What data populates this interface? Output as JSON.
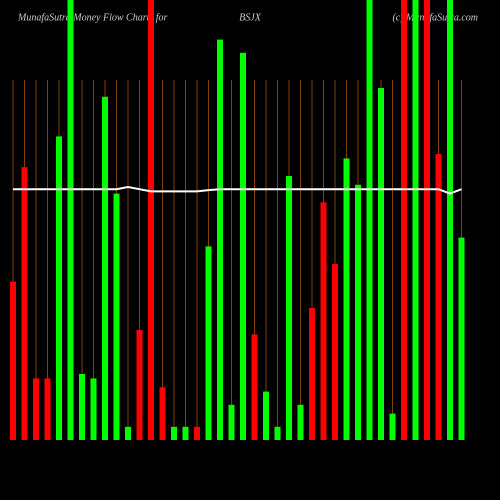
{
  "chart_data": {
    "type": "bar",
    "title": "MunafaSutra Money Flow Charts for",
    "symbol": "BSJX",
    "credit": "(c) MunafaSutra.com",
    "categories": [
      null,
      null,
      null,
      null,
      null,
      null,
      null,
      null,
      null,
      null,
      null,
      null,
      null,
      null,
      null,
      null,
      null,
      null,
      null,
      null,
      null,
      null,
      null,
      null,
      null,
      null,
      null,
      null,
      null,
      null,
      null,
      null,
      null,
      null,
      null,
      null,
      null,
      null,
      null,
      null
    ],
    "values": [
      36,
      62,
      14,
      14,
      69,
      100,
      15,
      14,
      78,
      56,
      3,
      25,
      100,
      12,
      3,
      3,
      3,
      44,
      91,
      8,
      88,
      24,
      11,
      3,
      60,
      8,
      30,
      54,
      40,
      64,
      58,
      100,
      80,
      6,
      100,
      100,
      100,
      65,
      100,
      46
    ],
    "colors": [
      "#ff0000",
      "#ff0000",
      "#ff0000",
      "#ff0000",
      "#00ff00",
      "#00ff00",
      "#00ff00",
      "#00ff00",
      "#00ff00",
      "#00ff00",
      "#00ff00",
      "#ff0000",
      "#ff0000",
      "#ff0000",
      "#00ff00",
      "#00ff00",
      "#ff0000",
      "#00ff00",
      "#00ff00",
      "#00ff00",
      "#00ff00",
      "#ff0000",
      "#00ff00",
      "#00ff00",
      "#00ff00",
      "#00ff00",
      "#ff0000",
      "#ff0000",
      "#ff0000",
      "#00ff00",
      "#00ff00",
      "#00ff00",
      "#00ff00",
      "#00ff00",
      "#ff0000",
      "#00ff00",
      "#ff0000",
      "#ff0000",
      "#00ff00",
      "#00ff00"
    ],
    "line_values": [
      57,
      57,
      57,
      57,
      57,
      57,
      57,
      57,
      57,
      57,
      57.5,
      57,
      56.5,
      56.5,
      56.5,
      56.5,
      56.5,
      56.8,
      57,
      57,
      57,
      57,
      57,
      57,
      57,
      57,
      57,
      57,
      57,
      57,
      57,
      57,
      57,
      57,
      57,
      57,
      57,
      57,
      56,
      57
    ],
    "line_color": "#ffffff",
    "ylim": [
      0,
      100
    ],
    "grid": true,
    "grid_color": "#a0520d"
  }
}
